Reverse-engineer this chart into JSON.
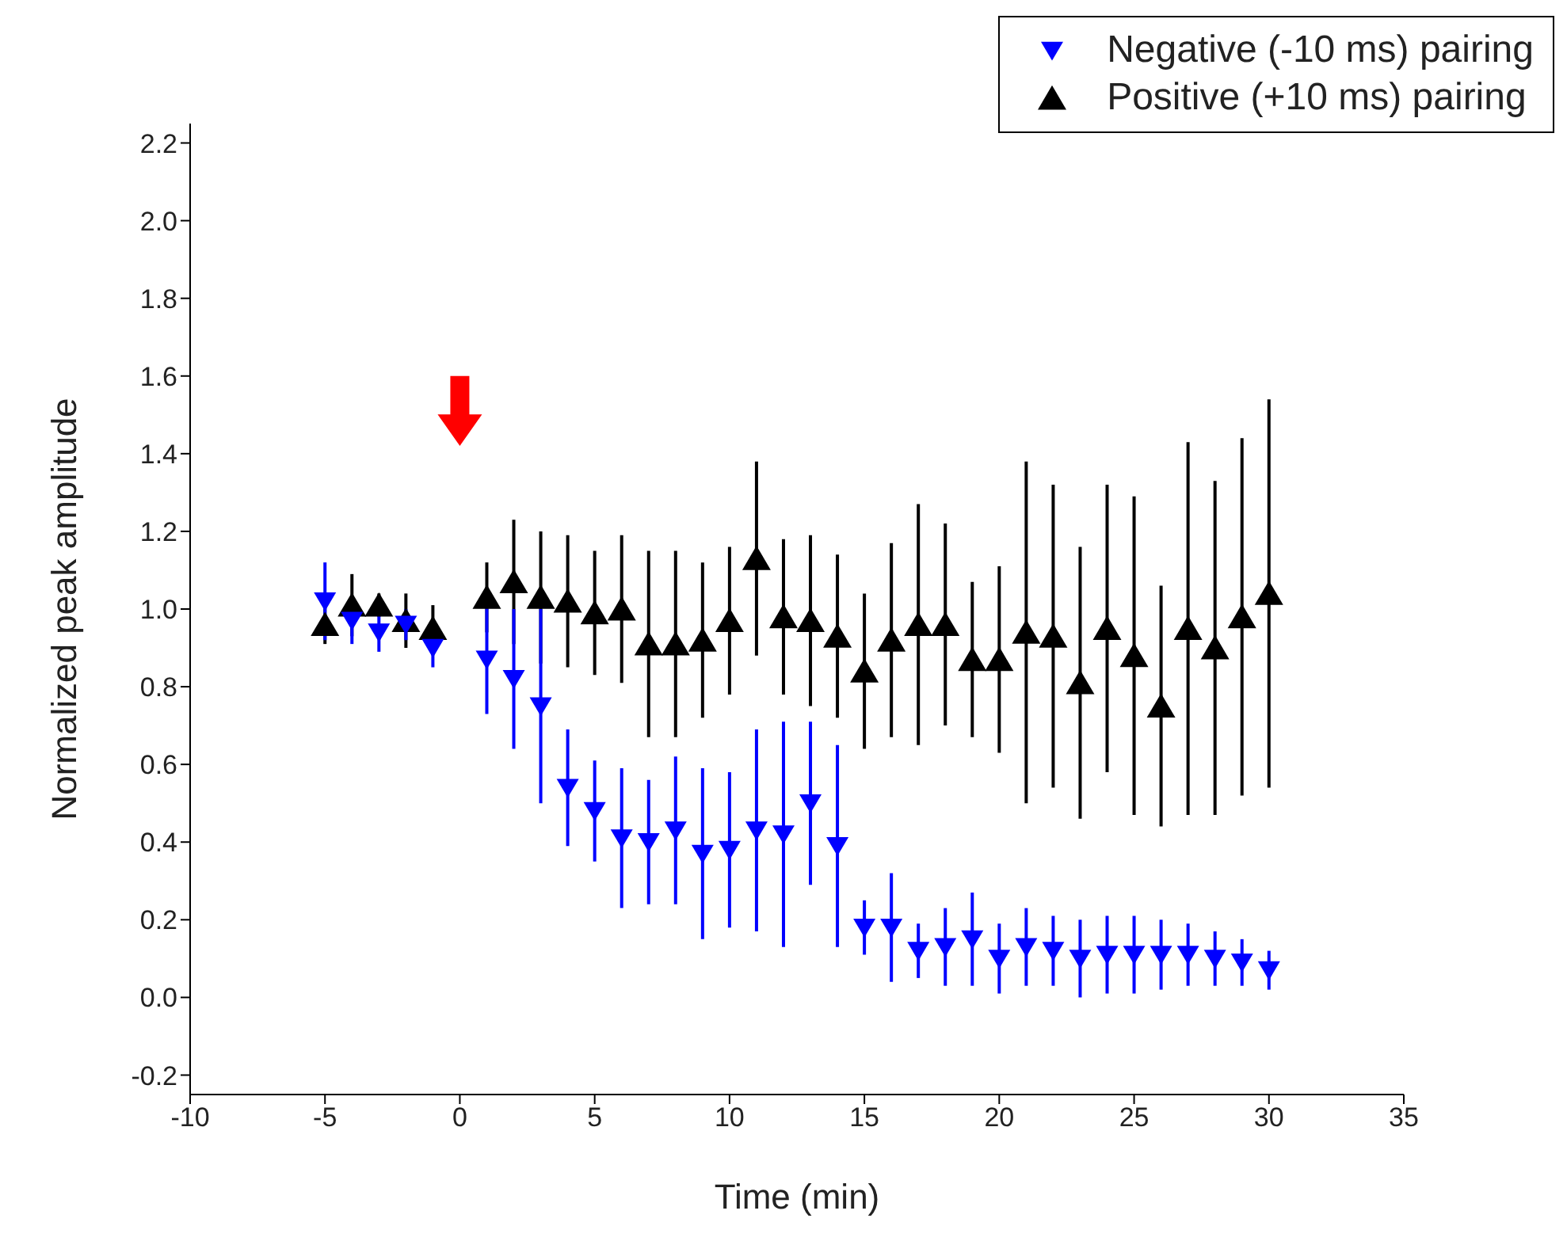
{
  "chart_data": {
    "type": "scatter",
    "xlabel": "Time (min)",
    "ylabel": "Normalized peak amplitude",
    "x": [
      -5,
      -4,
      -3,
      -2,
      -1,
      1,
      2,
      3,
      4,
      5,
      6,
      7,
      8,
      9,
      10,
      11,
      12,
      13,
      14,
      15,
      16,
      17,
      18,
      19,
      20,
      21,
      22,
      23,
      24,
      25,
      26,
      27,
      28,
      29,
      30
    ],
    "series": [
      {
        "name": "Negative (-10 ms) pairing",
        "color": "#0000ff",
        "values": [
          1.02,
          0.97,
          0.94,
          0.96,
          0.9,
          0.87,
          0.82,
          0.75,
          0.54,
          0.48,
          0.41,
          0.4,
          0.43,
          0.37,
          0.38,
          0.43,
          0.42,
          0.5,
          0.39,
          0.18,
          0.18,
          0.12,
          0.13,
          0.15,
          0.1,
          0.13,
          0.12,
          0.1,
          0.11,
          0.11,
          0.11,
          0.11,
          0.1,
          0.09,
          0.07
        ],
        "errors": [
          0.1,
          0.06,
          0.05,
          0.04,
          0.05,
          0.14,
          0.18,
          0.25,
          0.15,
          0.13,
          0.18,
          0.16,
          0.19,
          0.22,
          0.2,
          0.26,
          0.29,
          0.21,
          0.26,
          0.07,
          0.14,
          0.07,
          0.1,
          0.12,
          0.09,
          0.1,
          0.09,
          0.1,
          0.1,
          0.1,
          0.09,
          0.08,
          0.07,
          0.06,
          0.05
        ]
      },
      {
        "name": "Positive (+10 ms) pairing",
        "color": "#000000",
        "values": [
          0.96,
          1.01,
          1.01,
          0.97,
          0.95,
          1.03,
          1.07,
          1.03,
          1.02,
          0.99,
          1.0,
          0.91,
          0.91,
          0.92,
          0.97,
          1.13,
          0.98,
          0.97,
          0.93,
          0.84,
          0.92,
          0.96,
          0.96,
          0.87,
          0.87,
          0.94,
          0.93,
          0.81,
          0.95,
          0.88,
          0.75,
          0.95,
          0.9,
          0.98,
          1.04
        ],
        "errors": [
          0.05,
          0.08,
          0.03,
          0.07,
          0.06,
          0.09,
          0.16,
          0.17,
          0.17,
          0.16,
          0.19,
          0.24,
          0.24,
          0.2,
          0.19,
          0.25,
          0.2,
          0.22,
          0.21,
          0.2,
          0.25,
          0.31,
          0.26,
          0.2,
          0.24,
          0.44,
          0.39,
          0.35,
          0.37,
          0.41,
          0.31,
          0.48,
          0.43,
          0.46,
          0.5
        ]
      }
    ],
    "xlim": [
      -10,
      35
    ],
    "xticks": [
      -10,
      -5,
      0,
      5,
      10,
      15,
      20,
      25,
      30,
      35
    ],
    "ylim": [
      -0.25,
      2.25
    ],
    "yticks": [
      -0.2,
      {
        "value": 0,
        "label": "0.0"
      },
      0.2,
      0.4,
      0.6,
      0.8,
      {
        "value": 1,
        "label": "1.0"
      },
      1.2,
      1.4,
      1.6,
      1.8,
      {
        "value": 2,
        "label": "2.0"
      },
      2.2
    ],
    "grid": false,
    "legend": "top right",
    "marker": "triangle"
  }
}
